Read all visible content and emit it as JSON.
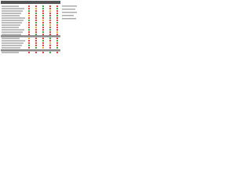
{
  "table": {
    "rows": [
      [
        "#e03030",
        "#e03030",
        "#30a030",
        "#e03030",
        "#e03030"
      ],
      [
        "#e03030",
        "#e8a020",
        "#30a030",
        "#e03030",
        "#30a030"
      ],
      [
        "#30a030",
        "#e03030",
        "#e03030",
        "#e8a020",
        "#e03030"
      ],
      [
        "#e03030",
        "#30a030",
        "#e03030",
        "#e03030",
        "#e03030"
      ],
      [
        "#e8a020",
        "#e03030",
        "#30a030",
        "#e03030",
        "#30a030"
      ],
      [
        "#e03030",
        "#e03030",
        "#e03030",
        "#30a030",
        "#e03030"
      ],
      [
        "#30a030",
        "#e03030",
        "#e8a020",
        "#e03030",
        "#e03030"
      ],
      [
        "#e03030",
        "#30a030",
        "#e03030",
        "#e03030",
        "#30a030"
      ],
      [
        "#e03030",
        "#e03030",
        "#30a030",
        "#e8a020",
        "#e03030"
      ],
      [
        "#e03030",
        "#e8a020",
        "#e03030",
        "#e03030",
        "#e03030"
      ],
      [
        "#30a030",
        "#e03030",
        "#e03030",
        "#30a030",
        "#e03030"
      ],
      [
        "#e03030",
        "#e03030",
        "#30a030",
        "#e03030",
        "#e8a020"
      ],
      [
        "#e03030",
        "#30a030",
        "#e03030",
        "#e03030",
        "#e03030"
      ],
      [
        "#e8a020",
        "#e03030",
        "#e03030",
        "#30a030",
        "#e03030"
      ],
      [
        "#e03030",
        "#e03030",
        "#30a030",
        "#e03030",
        "#30a030"
      ],
      [
        "#e03030",
        "#e03030",
        "#e03030",
        "#e8a020",
        "#e03030"
      ],
      [
        "#30a030",
        "#e03030",
        "#e03030",
        "#e03030",
        "#e03030"
      ],
      [
        "#e03030",
        "#30a030",
        "#e8a020",
        "#e03030",
        "#30a030"
      ],
      [
        "#e03030",
        "#e03030",
        "#e03030",
        "#30a030",
        "#e03030"
      ]
    ]
  }
}
